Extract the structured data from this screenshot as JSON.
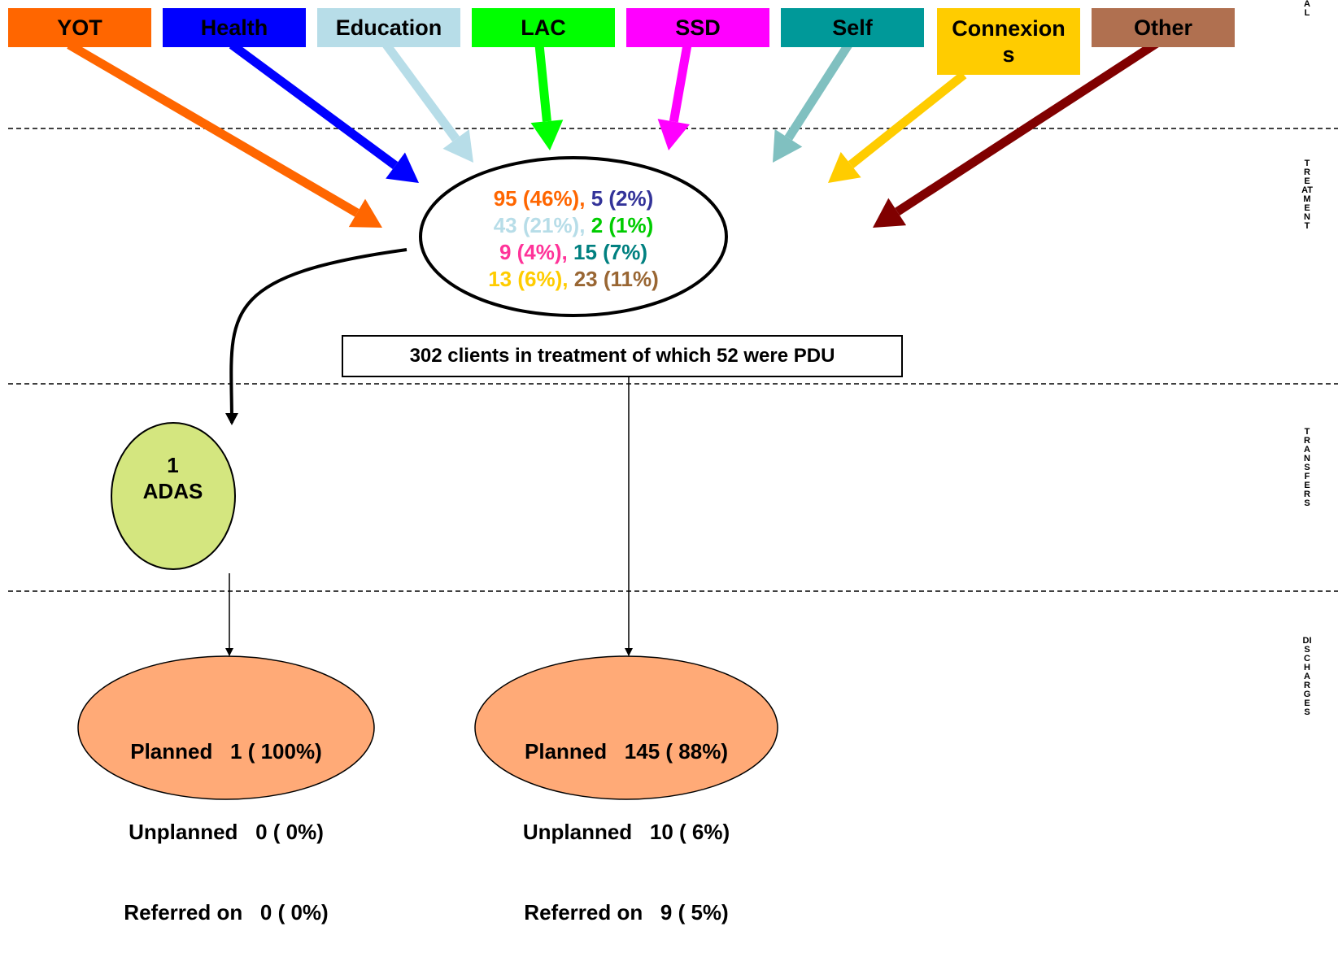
{
  "sources": [
    {
      "label": "YOT",
      "color": "#ff6600"
    },
    {
      "label": "Health",
      "color": "#0000ff"
    },
    {
      "label": "Education",
      "color": "#b7dde8"
    },
    {
      "label": "LAC",
      "color": "#00ff00"
    },
    {
      "label": "SSD",
      "color": "#ff00ff"
    },
    {
      "label": "Self",
      "color": "#009999"
    },
    {
      "label": "Connexions",
      "color": "#ffcc00"
    },
    {
      "label": "Other",
      "color": "#b07050"
    }
  ],
  "stage_labels": {
    "referral_fragment": "AL",
    "treatment": "TREATMENT",
    "transfers": "TRANSFERS",
    "discharges": "DISCHARGES"
  },
  "treatment_counts": {
    "yot": "95 (46%),",
    "health": "5 (2%)",
    "education": "43 (21%),",
    "lac": "2 (1%)",
    "ssd": "9 (4%),",
    "self": "15 (7%)",
    "connexions": "13 (6%),",
    "other": "23 (11%)"
  },
  "treatment_summary": "302 clients in treatment of which 52 were PDU",
  "transfer": {
    "count": "1",
    "label": "ADAS"
  },
  "discharges_left": {
    "planned": "Planned   1 ( 100%)",
    "unplanned": "Unplanned   0 ( 0%)",
    "referred": "Referred on   0 ( 0%)"
  },
  "discharges_right": {
    "planned": "Planned   145 ( 88%)",
    "unplanned": "Unplanned   10 ( 6%)",
    "referred": "Referred on   9 ( 5%)"
  }
}
